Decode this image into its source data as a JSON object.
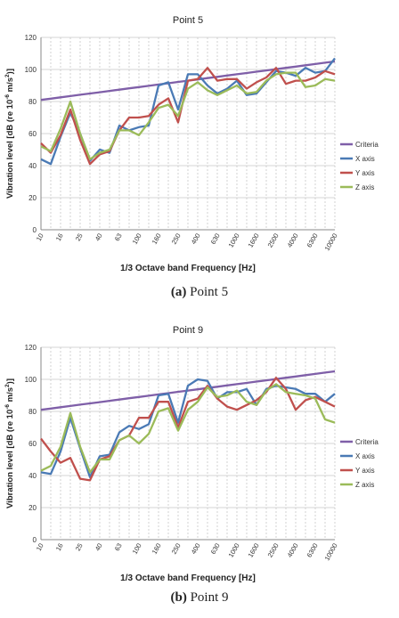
{
  "chart_data": [
    {
      "type": "line",
      "title": "Point 5",
      "xlabel": "1/3 Octave band Frequency [Hz]",
      "ylabel_pre": "Vibration level [dB (re 10",
      "ylabel_exp": "-6",
      "ylabel_mid": " m/s",
      "ylabel_exp2": "2",
      "ylabel_post": ")]",
      "ylim": [
        0,
        120
      ],
      "yticks": [
        0,
        20,
        40,
        60,
        80,
        100,
        120
      ],
      "grid": true,
      "legend_position": "right",
      "categories": [
        "10",
        "12.5",
        "16",
        "20",
        "25",
        "31.5",
        "40",
        "50",
        "63",
        "80",
        "100",
        "125",
        "160",
        "200",
        "250",
        "315",
        "400",
        "500",
        "630",
        "800",
        "1000",
        "1250",
        "1600",
        "2000",
        "2500",
        "3150",
        "4000",
        "5000",
        "6300",
        "8000",
        "10000"
      ],
      "tick_labels": [
        "10",
        "16",
        "25",
        "40",
        "63",
        "100",
        "160",
        "250",
        "400",
        "630",
        "1000",
        "1600",
        "2500",
        "4000",
        "6300",
        "10000"
      ],
      "series": [
        {
          "name": "Criteria",
          "color": "#7f5fa8",
          "values": [
            81,
            81.8,
            82.6,
            83.4,
            84.2,
            85,
            85.8,
            86.6,
            87.4,
            88.2,
            89,
            89.8,
            90.6,
            91.4,
            92.2,
            93,
            93.8,
            94.6,
            95.4,
            96.2,
            97,
            97.8,
            98.6,
            99.4,
            100.2,
            101,
            101.8,
            102.6,
            103.4,
            104.2,
            105
          ]
        },
        {
          "name": "X axis",
          "color": "#4a7ab5",
          "values": [
            44,
            41,
            58,
            73,
            60,
            43,
            50,
            48,
            65,
            62,
            64,
            65,
            90,
            92,
            75,
            97,
            97,
            90,
            85,
            88,
            93,
            84,
            85,
            92,
            99,
            98,
            96,
            101,
            98,
            99,
            107
          ]
        },
        {
          "name": "Y axis",
          "color": "#c0504d",
          "values": [
            54,
            48,
            59,
            75,
            56,
            41,
            47,
            49,
            62,
            70,
            70,
            71,
            78,
            82,
            67,
            93,
            94,
            101,
            93,
            94,
            94,
            88,
            92,
            95,
            101,
            91,
            93,
            93,
            95,
            99,
            97
          ]
        },
        {
          "name": "Z axis",
          "color": "#9bbb59",
          "values": [
            52,
            49,
            63,
            80,
            60,
            44,
            48,
            50,
            62,
            62,
            59,
            67,
            76,
            78,
            71,
            88,
            92,
            87,
            84,
            87,
            90,
            85,
            86,
            93,
            97,
            98,
            98,
            89,
            90,
            94,
            93
          ]
        }
      ]
    },
    {
      "type": "line",
      "title": "Point 9",
      "xlabel": "1/3 Octave band Frequency [Hz]",
      "ylabel_pre": "Vibration level [dB (re 10",
      "ylabel_exp": "-6",
      "ylabel_mid": " m/s",
      "ylabel_exp2": "2",
      "ylabel_post": ")]",
      "ylim": [
        0,
        120
      ],
      "yticks": [
        0,
        20,
        40,
        60,
        80,
        100,
        120
      ],
      "grid": true,
      "legend_position": "right",
      "categories": [
        "10",
        "12.5",
        "16",
        "20",
        "25",
        "31.5",
        "40",
        "50",
        "63",
        "80",
        "100",
        "125",
        "160",
        "200",
        "250",
        "315",
        "400",
        "500",
        "630",
        "800",
        "1000",
        "1250",
        "1600",
        "2000",
        "2500",
        "3150",
        "4000",
        "5000",
        "6300",
        "8000",
        "10000"
      ],
      "tick_labels": [
        "10",
        "16",
        "25",
        "40",
        "63",
        "100",
        "160",
        "250",
        "400",
        "630",
        "1000",
        "1600",
        "2500",
        "4000",
        "6300",
        "10000"
      ],
      "series": [
        {
          "name": "Criteria",
          "color": "#7f5fa8",
          "values": [
            81,
            81.8,
            82.6,
            83.4,
            84.2,
            85,
            85.8,
            86.6,
            87.4,
            88.2,
            89,
            89.8,
            90.6,
            91.4,
            92.2,
            93,
            93.8,
            94.6,
            95.4,
            96.2,
            97,
            97.8,
            98.6,
            99.4,
            100.2,
            101,
            101.8,
            102.6,
            103.4,
            104.2,
            105
          ]
        },
        {
          "name": "X axis",
          "color": "#4a7ab5",
          "values": [
            42,
            41,
            55,
            76,
            57,
            39,
            52,
            53,
            67,
            71,
            69,
            72,
            90,
            91,
            73,
            96,
            100,
            99,
            88,
            92,
            92,
            94,
            84,
            94,
            96,
            95,
            94,
            91,
            91,
            86,
            91
          ]
        },
        {
          "name": "Y axis",
          "color": "#c0504d",
          "values": [
            63,
            55,
            48,
            51,
            38,
            37,
            50,
            52,
            62,
            65,
            76,
            76,
            86,
            86,
            70,
            86,
            88,
            96,
            88,
            83,
            81,
            84,
            87,
            92,
            101,
            94,
            81,
            87,
            89,
            86,
            83
          ]
        },
        {
          "name": "Z axis",
          "color": "#9bbb59",
          "values": [
            43,
            46,
            58,
            79,
            58,
            42,
            50,
            50,
            62,
            65,
            60,
            66,
            80,
            82,
            68,
            81,
            86,
            95,
            89,
            90,
            93,
            86,
            84,
            93,
            97,
            92,
            91,
            90,
            88,
            75,
            73
          ]
        }
      ]
    }
  ],
  "captions": [
    {
      "letter": "(a)",
      "text": " Point 5"
    },
    {
      "letter": "(b)",
      "text": " Point 9"
    }
  ]
}
